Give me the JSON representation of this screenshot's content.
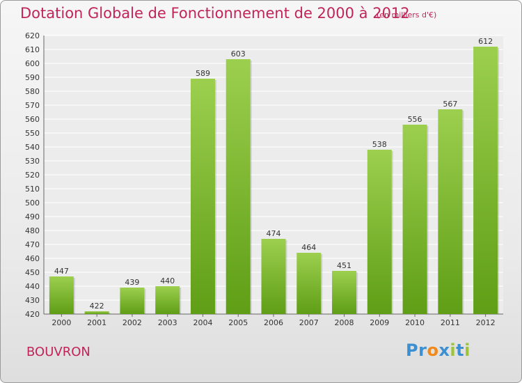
{
  "title": "Dotation Globale de Fonctionnement de 2000 à 2012",
  "subtitle": "(en milliers d'€)",
  "place": "BOUVRON",
  "logo": "Proxiti",
  "colors": {
    "title": "#c0245a",
    "bar_light": "#9ccf4e",
    "bar_dark": "#5f9e16",
    "logo_p": "#3b8fd3",
    "logo_r": "#3b8fd3",
    "logo_o": "#f08a1c",
    "logo_x": "#3b8fd3",
    "logo_i1": "#9bc43b",
    "logo_t": "#3b8fd3",
    "logo_i2": "#9bc43b"
  },
  "chart_data": {
    "type": "bar",
    "categories": [
      "2000",
      "2001",
      "2002",
      "2003",
      "2004",
      "2005",
      "2006",
      "2007",
      "2008",
      "2009",
      "2010",
      "2011",
      "2012"
    ],
    "values": [
      447,
      422,
      439,
      440,
      589,
      603,
      474,
      464,
      451,
      538,
      556,
      567,
      612
    ],
    "ylim": [
      420,
      620
    ],
    "ytick_step": 10,
    "grid": true,
    "xlabel": "",
    "ylabel": ""
  }
}
